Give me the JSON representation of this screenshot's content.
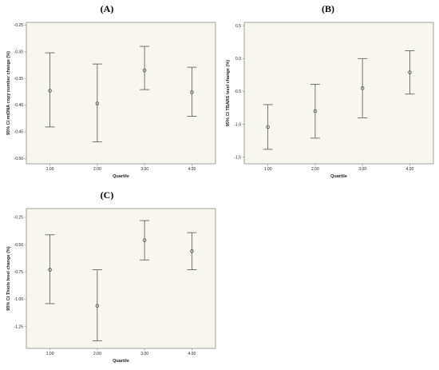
{
  "chart_data": [
    {
      "type": "scatter",
      "panel_label": "(A)",
      "xlabel": "Quartile",
      "ylabel": "95% CI mtDNA copy number change (%)",
      "categories": [
        "1.00",
        "2.00",
        "3.00",
        "4.00"
      ],
      "yticks": [
        "-0.25",
        "-0.30",
        "-0.35",
        "-0.40",
        "-0.45",
        "-0.50"
      ],
      "ytick_values": [
        -0.25,
        -0.3,
        -0.35,
        -0.4,
        -0.45,
        -0.5
      ],
      "ylim": [
        -0.51,
        -0.245
      ],
      "series": [
        {
          "means": [
            -0.373,
            -0.397,
            -0.335,
            -0.376
          ],
          "lower": [
            -0.441,
            -0.469,
            -0.371,
            -0.421
          ],
          "upper": [
            -0.302,
            -0.323,
            -0.29,
            -0.329
          ]
        }
      ]
    },
    {
      "type": "scatter",
      "panel_label": "(B)",
      "xlabel": "Quartile",
      "ylabel": "95% CI TBARS level change (%)",
      "categories": [
        "1.00",
        "2.00",
        "3.00",
        "4.00"
      ],
      "yticks": [
        "0.5",
        "0.0",
        "-0.5",
        "-1.0",
        "-1.5"
      ],
      "ytick_values": [
        0.5,
        0.0,
        -0.5,
        -1.0,
        -1.5
      ],
      "ylim": [
        -1.6,
        0.55
      ],
      "series": [
        {
          "means": [
            -1.04,
            -0.8,
            -0.45,
            -0.21
          ],
          "lower": [
            -1.38,
            -1.21,
            -0.9,
            -0.54
          ],
          "upper": [
            -0.7,
            -0.39,
            0.0,
            0.12
          ]
        }
      ]
    },
    {
      "type": "scatter",
      "panel_label": "(C)",
      "xlabel": "Quartile",
      "ylabel": "95% CI Thiols level change (%)",
      "categories": [
        "1.00",
        "2.00",
        "3.00",
        "4.00"
      ],
      "yticks": [
        "-0.25",
        "-0.50",
        "-0.75",
        "-1.00",
        "-1.25"
      ],
      "ytick_values": [
        -0.25,
        -0.5,
        -0.75,
        -1.0,
        -1.25
      ],
      "ylim": [
        -1.45,
        -0.17
      ],
      "series": [
        {
          "means": [
            -0.73,
            -1.06,
            -0.46,
            -0.56
          ],
          "lower": [
            -1.04,
            -1.38,
            -0.64,
            -0.73
          ],
          "upper": [
            -0.41,
            -0.73,
            -0.28,
            -0.39
          ]
        }
      ]
    }
  ]
}
